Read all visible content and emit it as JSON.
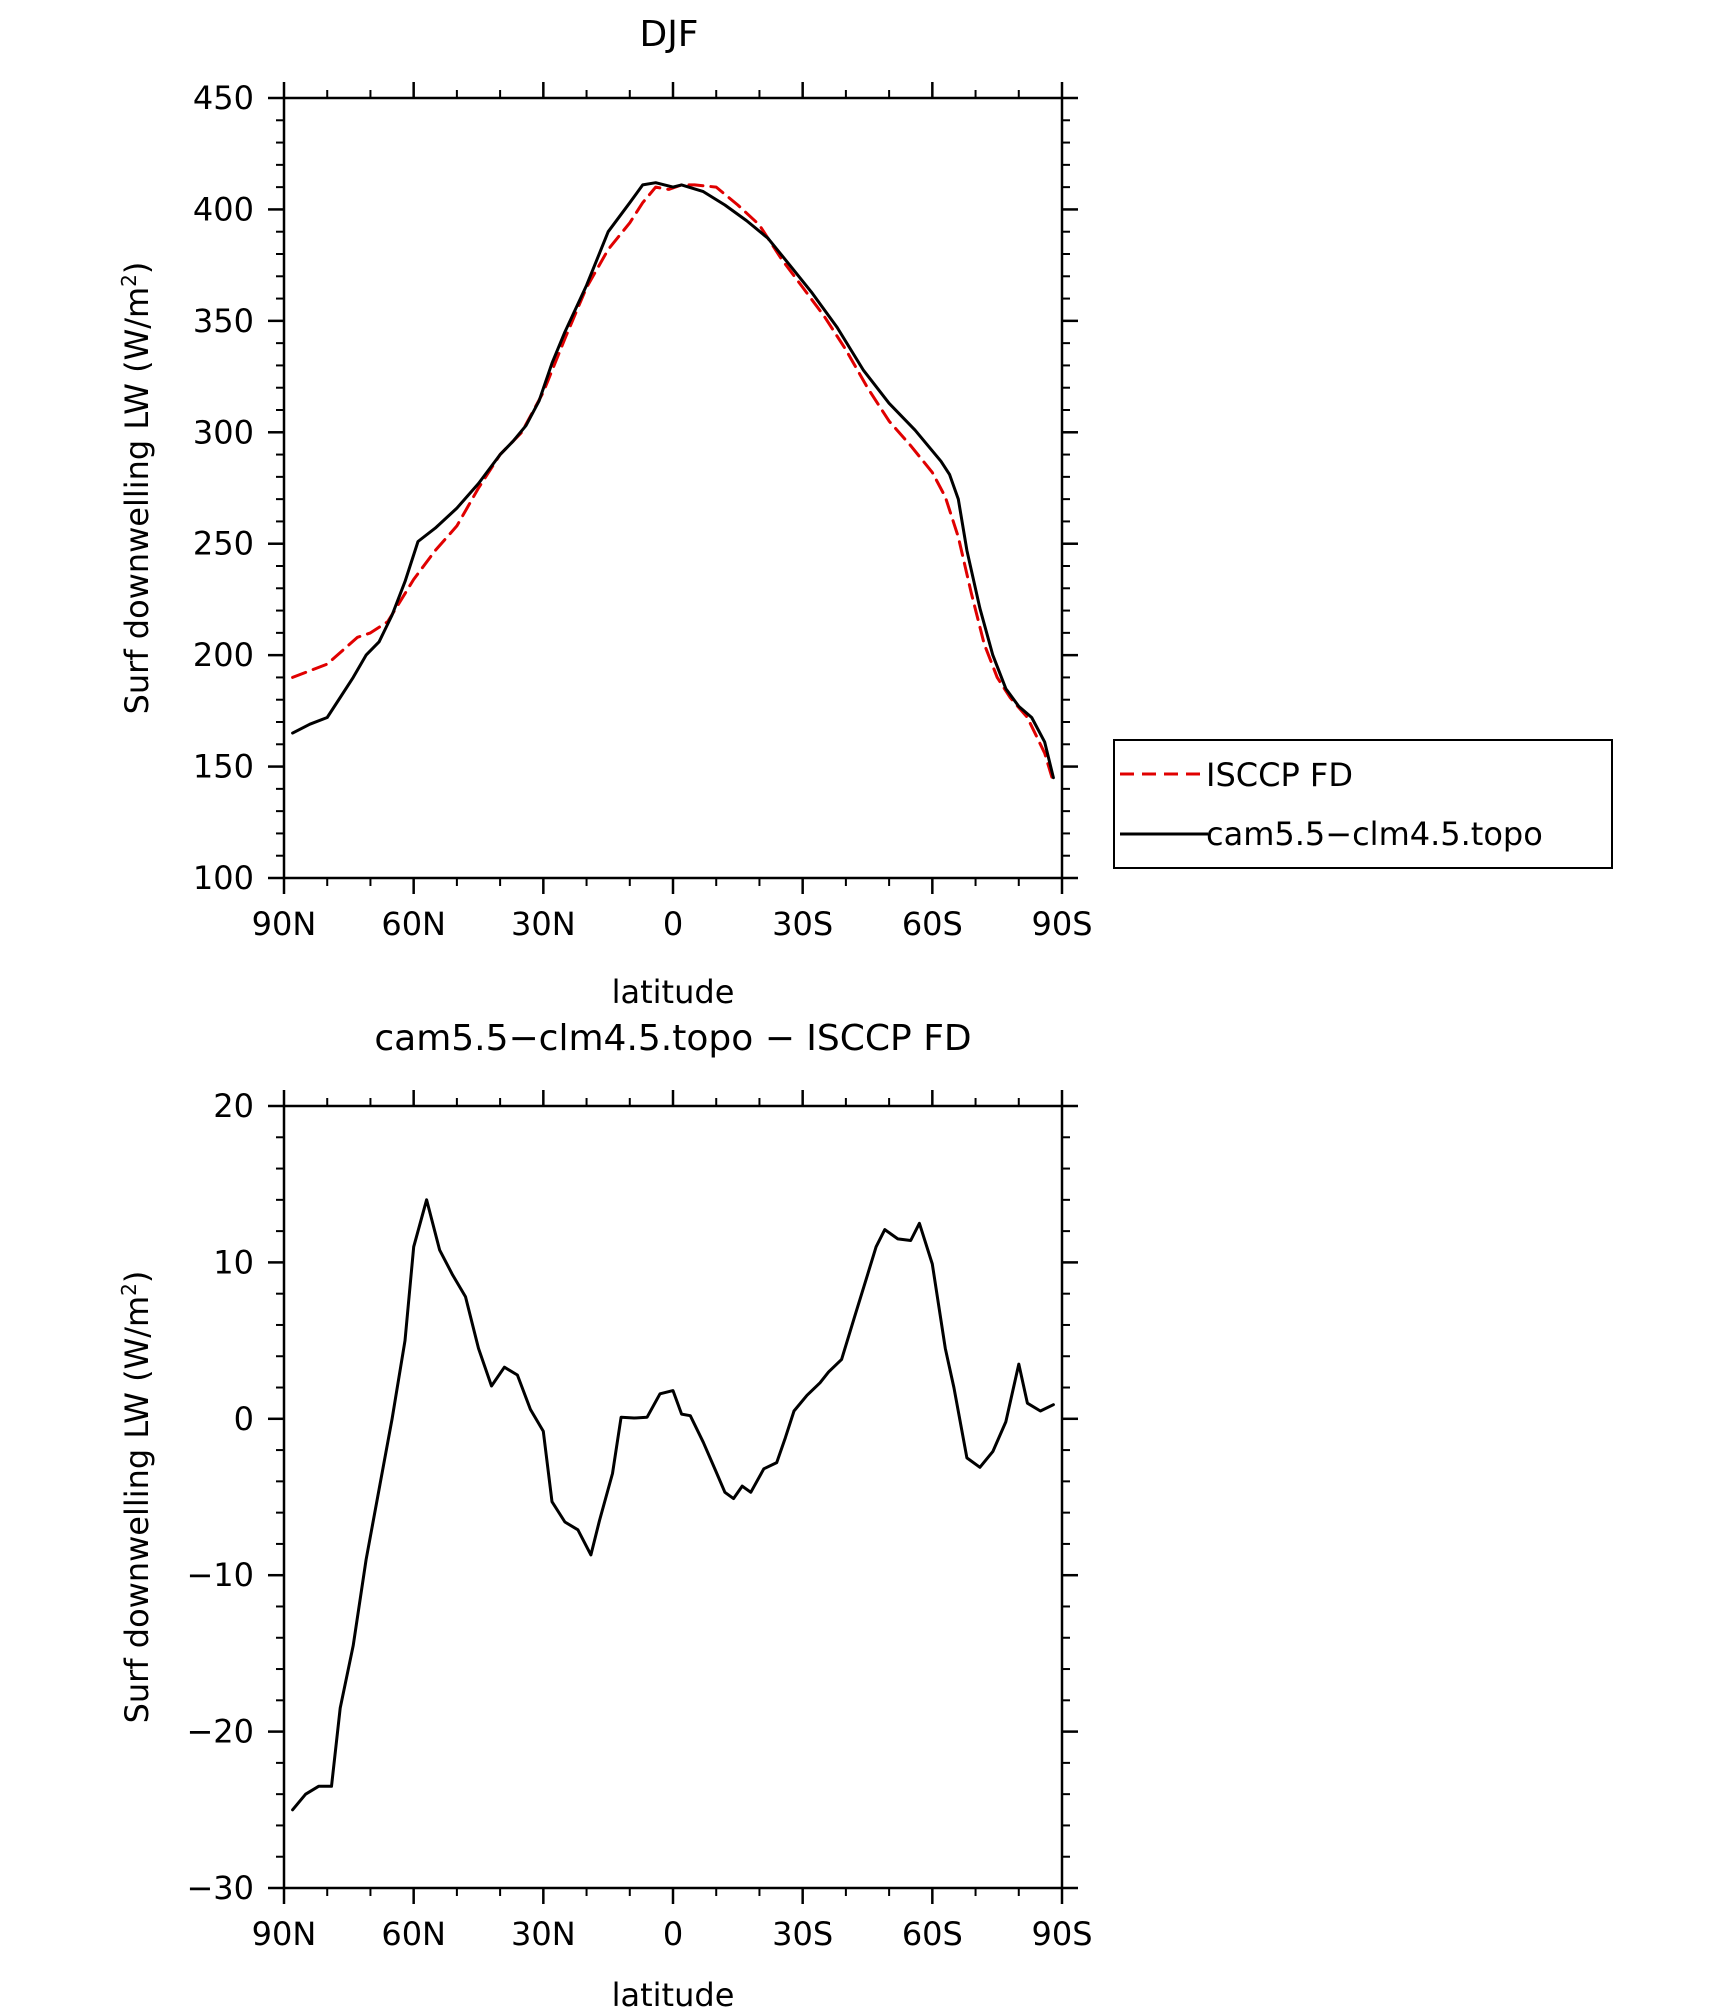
{
  "chart_data": [
    {
      "type": "line",
      "title": "DJF",
      "xlabel": "latitude",
      "ylabel": "Surf downwelling LW (W/m",
      "ylabel_sup": "2",
      "ylabel_close": ")",
      "ylim": [
        100,
        450
      ],
      "xlim": [
        -90,
        90
      ],
      "yticks": [
        100,
        150,
        200,
        250,
        300,
        350,
        400,
        450
      ],
      "xticks": [
        -90,
        -60,
        -30,
        0,
        30,
        60,
        90
      ],
      "xtick_labels": [
        "90N",
        "60N",
        "30N",
        "0",
        "30S",
        "60S",
        "90S"
      ],
      "legend": {
        "placement": "right",
        "entries": [
          "ISCCP FD",
          "cam5.5−clm4.5.topo"
        ]
      },
      "series": [
        {
          "name": "ISCCP FD",
          "color": "#e00000",
          "dash": "dashed",
          "x": [
            -88,
            -80,
            -73,
            -70,
            -66,
            -60,
            -55,
            -50,
            -45,
            -40,
            -35,
            -30,
            -27.5,
            -25,
            -20,
            -15,
            -10,
            -7,
            -4,
            -1,
            2,
            5,
            10,
            15,
            20,
            25,
            30,
            35,
            40,
            45,
            50,
            55,
            60,
            63,
            66,
            69,
            72,
            75,
            78,
            82,
            86,
            88
          ],
          "y": [
            190,
            196,
            208,
            210,
            215,
            234,
            247,
            258,
            275,
            290,
            300,
            318,
            330,
            342,
            365,
            382,
            394,
            403,
            410,
            409,
            411,
            411,
            410,
            402,
            393,
            378,
            365,
            352,
            337,
            320,
            305,
            294,
            282,
            271,
            253,
            228,
            205,
            190,
            181,
            172,
            156,
            143
          ]
        },
        {
          "name": "cam5.5−clm4.5.topo",
          "color": "#000000",
          "dash": "solid",
          "x": [
            -88,
            -84,
            -80,
            -77,
            -74,
            -71,
            -68,
            -65,
            -62,
            -59,
            -55,
            -50,
            -45,
            -40,
            -37,
            -34,
            -31,
            -28,
            -25,
            -20,
            -15,
            -10,
            -7,
            -4,
            0,
            2,
            7,
            12,
            17,
            22,
            27,
            32,
            38,
            44,
            50,
            56,
            62,
            64,
            66,
            68,
            71,
            74,
            77,
            80,
            83,
            86,
            88
          ],
          "y": [
            165,
            169,
            172,
            181,
            190,
            200,
            206,
            218,
            233,
            251,
            257,
            266,
            277,
            290,
            296,
            303,
            314,
            331,
            345,
            366,
            390,
            403,
            411,
            412,
            410,
            411,
            408,
            402,
            395,
            387,
            375,
            363,
            347,
            328,
            313,
            301,
            287,
            281,
            270,
            247,
            221,
            200,
            185,
            177,
            172,
            161,
            145
          ]
        }
      ]
    },
    {
      "type": "line",
      "title": "cam5.5−clm4.5.topo − ISCCP FD",
      "xlabel": "latitude",
      "ylabel": "Surf downwelling LW (W/m",
      "ylabel_sup": "2",
      "ylabel_close": ")",
      "ylim": [
        -30,
        20
      ],
      "xlim": [
        -90,
        90
      ],
      "yticks": [
        -30,
        -20,
        -10,
        0,
        10,
        20
      ],
      "ytick_labels": [
        "−30",
        "−20",
        "−10",
        "0",
        "10",
        "20"
      ],
      "xticks": [
        -90,
        -60,
        -30,
        0,
        30,
        60,
        90
      ],
      "xtick_labels": [
        "90N",
        "60N",
        "30N",
        "0",
        "30S",
        "60S",
        "90S"
      ],
      "series": [
        {
          "color": "#000000",
          "dash": "solid",
          "x": [
            -88,
            -85,
            -82,
            -79,
            -77,
            -74,
            -71,
            -68,
            -65,
            -62,
            -60,
            -57,
            -54,
            -51,
            -48,
            -45,
            -42,
            -39,
            -36,
            -33,
            -30,
            -28,
            -25,
            -22,
            -19,
            -17,
            -14,
            -12,
            -9,
            -6,
            -3,
            0,
            2,
            4,
            7,
            10,
            12,
            14,
            16,
            18,
            21,
            24,
            26,
            28,
            31,
            34,
            36,
            39,
            42,
            45,
            47,
            49,
            52,
            55,
            57,
            60,
            63,
            65,
            68,
            71,
            74,
            77,
            80,
            82,
            85,
            88
          ],
          "y": [
            -25,
            -24,
            -23.5,
            -23.5,
            -18.5,
            -14.5,
            -9,
            -4.5,
            0,
            5,
            11,
            14,
            10.8,
            9.2,
            7.8,
            4.5,
            2.1,
            3.3,
            2.8,
            0.6,
            -0.8,
            -5.3,
            -6.6,
            -7.1,
            -8.7,
            -6.5,
            -3.5,
            0.1,
            0.05,
            0.1,
            1.6,
            1.8,
            0.3,
            0.2,
            -1.5,
            -3.4,
            -4.7,
            -5.1,
            -4.3,
            -4.7,
            -3.2,
            -2.8,
            -1.2,
            0.5,
            1.5,
            2.3,
            3,
            3.8,
            6.5,
            9.2,
            11,
            12.1,
            11.5,
            11.4,
            12.5,
            9.9,
            4.5,
            2,
            -2.5,
            -3.1,
            -2.1,
            -0.2,
            3.5,
            1,
            0.5,
            0.9
          ]
        }
      ]
    }
  ]
}
